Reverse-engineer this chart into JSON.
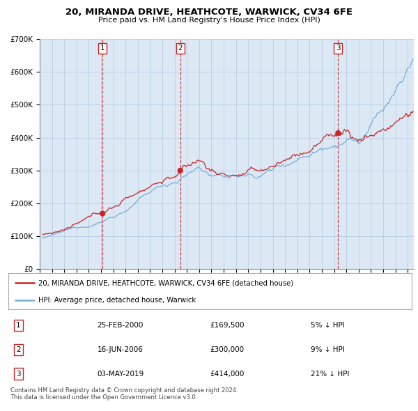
{
  "title": "20, MIRANDA DRIVE, HEATHCOTE, WARWICK, CV34 6FE",
  "subtitle": "Price paid vs. HM Land Registry's House Price Index (HPI)",
  "legend_line1": "20, MIRANDA DRIVE, HEATHCOTE, WARWICK, CV34 6FE (detached house)",
  "legend_line2": "HPI: Average price, detached house, Warwick",
  "hpi_color": "#7aacda",
  "price_color": "#cc2222",
  "background_color": "#dce9f5",
  "purchase_dates": [
    2000.12,
    2006.46,
    2019.33
  ],
  "purchase_prices": [
    169500,
    300000,
    414000
  ],
  "purchase_labels": [
    "1",
    "2",
    "3"
  ],
  "table_data": [
    [
      "1",
      "25-FEB-2000",
      "£169,500",
      "5% ↓ HPI"
    ],
    [
      "2",
      "16-JUN-2006",
      "£300,000",
      "9% ↓ HPI"
    ],
    [
      "3",
      "03-MAY-2019",
      "£414,000",
      "21% ↓ HPI"
    ]
  ],
  "footer": "Contains HM Land Registry data © Crown copyright and database right 2024.\nThis data is licensed under the Open Government Licence v3.0.",
  "ylim": [
    0,
    700000
  ],
  "xlim_start": 1995.25,
  "xlim_end": 2025.5
}
